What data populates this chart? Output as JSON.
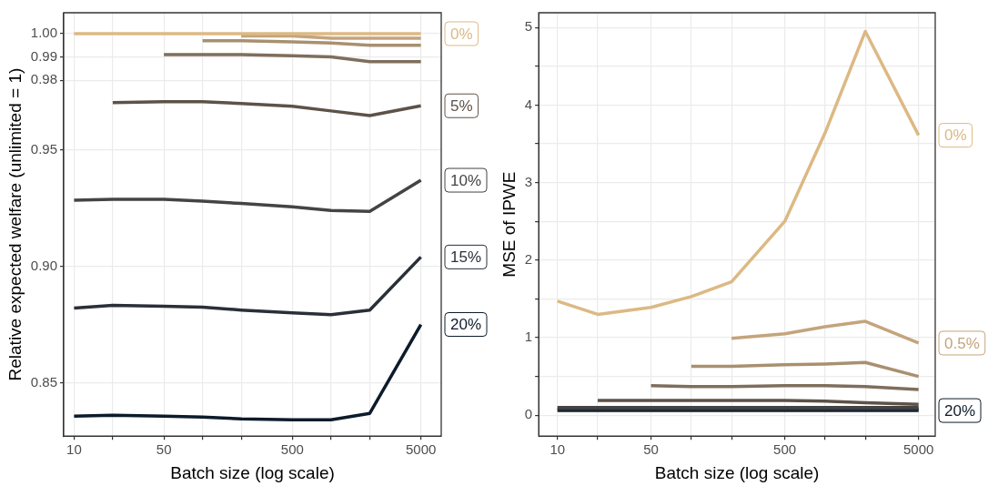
{
  "chart_data": [
    {
      "type": "line",
      "xlabel": "Batch size (log scale)",
      "ylabel": "Relative expected welfare (unlimited = 1)",
      "log": "x",
      "grid": true,
      "marker": "none",
      "line_style": "solid",
      "x": [
        10,
        20,
        50,
        100,
        200,
        500,
        1000,
        2000,
        5000
      ],
      "xlim": [
        8.3,
        7200
      ],
      "xticks": [
        10,
        {
          "value": 20,
          "label": null
        },
        50,
        {
          "value": 100,
          "label": null
        },
        {
          "value": 200,
          "label": null
        },
        500,
        {
          "value": 1000,
          "label": null
        },
        {
          "value": 2000,
          "label": null
        },
        5000
      ],
      "ylim": [
        0.827,
        1.009
      ],
      "yticks": [
        0.85,
        {
          "value": 0.9,
          "label": "0.90"
        },
        0.95,
        0.98,
        0.99,
        {
          "value": 1,
          "label": "1.00"
        }
      ],
      "series": [
        {
          "name": "0%",
          "color": "#dcb984",
          "values": [
            1,
            1,
            1,
            1,
            1,
            1,
            1,
            1,
            1
          ]
        },
        {
          "color": "#c4a47c",
          "values": [
            null,
            null,
            null,
            null,
            0.999,
            0.999,
            0.998,
            0.998,
            0.998
          ]
        },
        {
          "color": "#a89070",
          "values": [
            null,
            null,
            null,
            0.997,
            0.997,
            0.9965,
            0.996,
            0.995,
            0.995
          ]
        },
        {
          "color": "#7f6e5c",
          "values": [
            null,
            null,
            0.991,
            0.991,
            0.991,
            0.9905,
            0.99,
            0.988,
            0.988
          ]
        },
        {
          "name": "5%",
          "color": "#5d5248",
          "values": [
            null,
            0.9704,
            0.9708,
            0.9708,
            0.97,
            0.9688,
            0.9668,
            0.9648,
            0.969
          ]
        },
        {
          "name": "10%",
          "color": "#444444",
          "values": [
            0.9284,
            0.9288,
            0.9288,
            0.928,
            0.927,
            0.9256,
            0.924,
            0.9236,
            0.937
          ]
        },
        {
          "name": "15%",
          "color": "#2a2f38",
          "values": [
            0.882,
            0.8832,
            0.8828,
            0.8824,
            0.8812,
            0.88,
            0.8792,
            0.8812,
            0.904
          ]
        },
        {
          "name": "20%",
          "color": "#0d1b2a",
          "values": [
            0.8356,
            0.836,
            0.8356,
            0.8352,
            0.8344,
            0.834,
            0.834,
            0.8368,
            0.875
          ]
        }
      ]
    },
    {
      "type": "line",
      "xlabel": "Batch size (log scale)",
      "ylabel": "MSE of IPWE",
      "log": "x",
      "grid": true,
      "marker": "none",
      "line_style": "solid",
      "x": [
        10,
        20,
        50,
        100,
        200,
        500,
        1000,
        2000,
        5000
      ],
      "xlim": [
        7.24,
        6660
      ],
      "xticks": [
        10,
        {
          "value": 20,
          "label": null
        },
        50,
        {
          "value": 100,
          "label": null
        },
        {
          "value": 200,
          "label": null
        },
        500,
        {
          "value": 1000,
          "label": null
        },
        {
          "value": 2000,
          "label": null
        },
        5000
      ],
      "ylim": [
        -0.27,
        5.19
      ],
      "yticks": [
        0,
        {
          "value": 0.5,
          "label": null
        },
        1,
        {
          "value": 1.5,
          "label": null
        },
        2,
        {
          "value": 2.5,
          "label": null
        },
        3,
        {
          "value": 3.5,
          "label": null
        },
        4,
        {
          "value": 4.5,
          "label": null
        },
        5
      ],
      "series": [
        {
          "name": "0%",
          "color": "#dcb984",
          "values": [
            1.47,
            1.3,
            1.39,
            1.53,
            1.72,
            2.5,
            3.64,
            4.95,
            3.61
          ]
        },
        {
          "name": "0.5%",
          "color": "#c4a47c",
          "values": [
            null,
            null,
            null,
            null,
            0.99,
            1.05,
            1.14,
            1.21,
            0.93
          ]
        },
        {
          "color": "#a89070",
          "values": [
            null,
            null,
            null,
            0.63,
            0.63,
            0.65,
            0.66,
            0.68,
            0.5
          ]
        },
        {
          "color": "#7f6e5c",
          "values": [
            null,
            null,
            0.38,
            0.37,
            0.37,
            0.38,
            0.38,
            0.37,
            0.33
          ]
        },
        {
          "color": "#5d5248",
          "values": [
            null,
            0.19,
            0.19,
            0.19,
            0.19,
            0.19,
            0.18,
            0.16,
            0.14
          ]
        },
        {
          "color": "#444444",
          "values": [
            0.1,
            0.1,
            0.1,
            0.1,
            0.1,
            0.1,
            0.1,
            0.1,
            0.1
          ]
        },
        {
          "color": "#2a2f38",
          "values": [
            0.08,
            0.08,
            0.08,
            0.08,
            0.08,
            0.08,
            0.08,
            0.08,
            0.08
          ]
        },
        {
          "name": "20%",
          "color": "#0d1b2a",
          "values": [
            0.06,
            0.06,
            0.06,
            0.06,
            0.06,
            0.06,
            0.06,
            0.06,
            0.06
          ]
        }
      ]
    }
  ]
}
